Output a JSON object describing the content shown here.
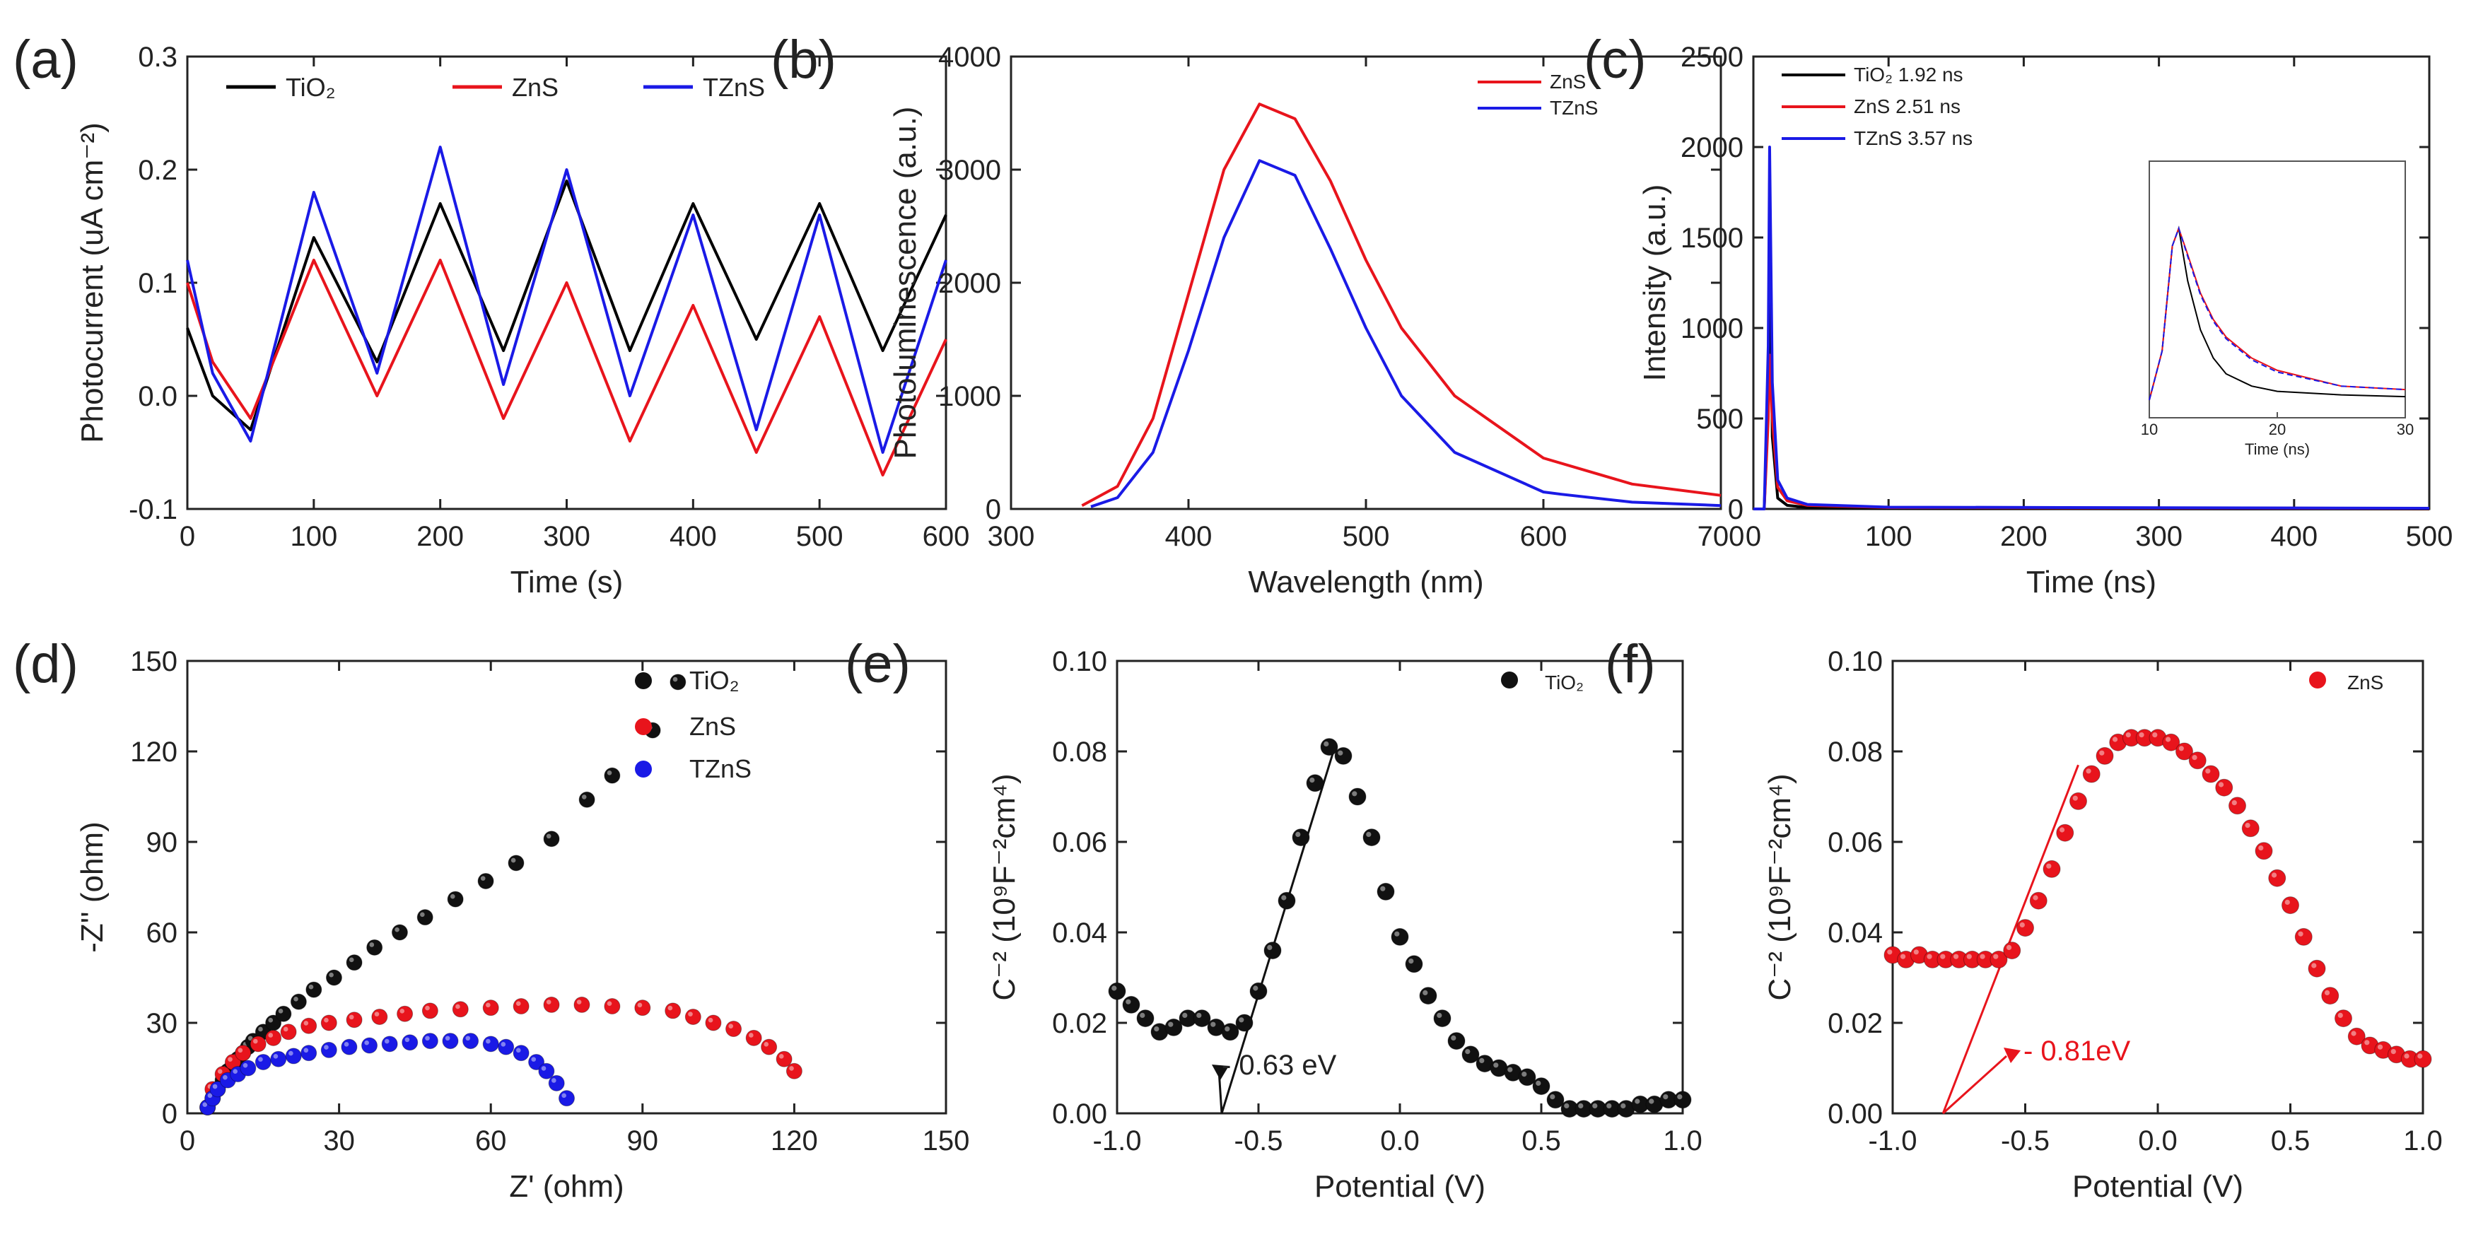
{
  "chart_data": [
    {
      "id": "a",
      "panel_label": "(a)",
      "type": "line",
      "xlabel": "Time (s)",
      "ylabel": "Photocurrent (uA cm⁻²)",
      "xlim": [
        0,
        600
      ],
      "ylim": [
        -0.1,
        0.3
      ],
      "xticks": [
        0,
        100,
        200,
        300,
        400,
        500,
        600
      ],
      "yticks": [
        -0.1,
        0.0,
        0.1,
        0.2,
        0.3
      ],
      "xtick_labels": [
        "0",
        "100",
        "200",
        "300",
        "400",
        "500",
        "600"
      ],
      "ytick_labels": [
        "-0.1",
        "0.0",
        "0.1",
        "0.2",
        "0.3"
      ],
      "legend_position": "top",
      "series": [
        {
          "name": "TiO₂",
          "color": "#000000",
          "x": [
            0,
            20,
            50,
            100,
            150,
            200,
            250,
            300,
            350,
            400,
            450,
            500,
            550,
            600
          ],
          "y": [
            0.06,
            0.0,
            -0.03,
            0.14,
            0.03,
            0.17,
            0.04,
            0.19,
            0.04,
            0.17,
            0.05,
            0.17,
            0.04,
            0.16
          ]
        },
        {
          "name": "ZnS",
          "color": "#e8141c",
          "x": [
            0,
            20,
            50,
            100,
            150,
            200,
            250,
            300,
            350,
            400,
            450,
            500,
            550,
            600
          ],
          "y": [
            0.1,
            0.03,
            -0.02,
            0.12,
            0.0,
            0.12,
            -0.02,
            0.1,
            -0.04,
            0.08,
            -0.05,
            0.07,
            -0.07,
            0.05
          ]
        },
        {
          "name": "TZnS",
          "color": "#1a1ae6",
          "x": [
            0,
            20,
            50,
            100,
            150,
            200,
            250,
            300,
            350,
            400,
            450,
            500,
            550,
            600
          ],
          "y": [
            0.12,
            0.02,
            -0.04,
            0.18,
            0.02,
            0.22,
            0.01,
            0.2,
            0.0,
            0.16,
            -0.03,
            0.16,
            -0.05,
            0.12
          ]
        }
      ]
    },
    {
      "id": "b",
      "panel_label": "(b)",
      "type": "line",
      "xlabel": "Wavelength (nm)",
      "ylabel": "Photoluminescence (a.u.)",
      "xlim": [
        300,
        700
      ],
      "ylim": [
        0,
        4000
      ],
      "xticks": [
        300,
        400,
        500,
        600,
        700
      ],
      "yticks": [
        0,
        1000,
        2000,
        3000,
        4000
      ],
      "xtick_labels": [
        "300",
        "400",
        "500",
        "600",
        "700"
      ],
      "ytick_labels": [
        "0",
        "1000",
        "2000",
        "3000",
        "4000"
      ],
      "legend_position": "top-right",
      "series": [
        {
          "name": "ZnS",
          "color": "#e8141c",
          "x": [
            340,
            360,
            380,
            400,
            420,
            440,
            460,
            480,
            500,
            520,
            550,
            600,
            650,
            700
          ],
          "y": [
            30,
            200,
            800,
            1900,
            3000,
            3580,
            3450,
            2900,
            2200,
            1600,
            1000,
            450,
            220,
            120
          ]
        },
        {
          "name": "TZnS",
          "color": "#1a1ae6",
          "x": [
            345,
            360,
            380,
            400,
            420,
            440,
            460,
            480,
            500,
            520,
            550,
            600,
            610,
            650,
            700
          ],
          "y": [
            20,
            100,
            500,
            1400,
            2400,
            3080,
            2950,
            2300,
            1600,
            1000,
            500,
            150,
            130,
            60,
            30
          ]
        }
      ]
    },
    {
      "id": "c",
      "panel_label": "(c)",
      "type": "line",
      "xlabel": "Time (ns)",
      "ylabel": "Intensity (a.u.)",
      "xlim": [
        0,
        500
      ],
      "ylim": [
        0,
        2500
      ],
      "xticks": [
        0,
        100,
        200,
        300,
        400,
        500
      ],
      "yticks": [
        0,
        500,
        1000,
        1500,
        2000,
        2500
      ],
      "xtick_labels": [
        "0",
        "100",
        "200",
        "300",
        "400",
        "500"
      ],
      "ytick_labels": [
        "0",
        "500",
        "1000",
        "1500",
        "2000",
        "2500"
      ],
      "legend_position": "top-left",
      "series": [
        {
          "name": "TiO₂ 1.92 ns",
          "color": "#000000",
          "x": [
            0,
            8,
            11,
            12,
            14,
            18,
            25,
            40,
            100,
            500
          ],
          "y": [
            0,
            0,
            600,
            1800,
            400,
            60,
            20,
            8,
            2,
            0
          ]
        },
        {
          "name": "ZnS 2.51 ns",
          "color": "#e8141c",
          "x": [
            0,
            8,
            11,
            12,
            14,
            18,
            25,
            40,
            100,
            500
          ],
          "y": [
            0,
            0,
            500,
            850,
            500,
            120,
            45,
            20,
            8,
            3
          ]
        },
        {
          "name": "TZnS 3.57 ns",
          "color": "#1a1ae6",
          "x": [
            0,
            8,
            11,
            12,
            14,
            18,
            25,
            40,
            100,
            500
          ],
          "y": [
            0,
            0,
            900,
            2000,
            700,
            160,
            60,
            25,
            10,
            4
          ]
        }
      ],
      "inset": {
        "xlabel": "Time (ns)",
        "xlim": [
          10,
          30
        ],
        "xticks": [
          10,
          20,
          30
        ],
        "xtick_labels": [
          "10",
          "20",
          "30"
        ],
        "series": [
          {
            "name": "TiO₂",
            "color": "#000000",
            "x": [
              10,
              11,
              11.8,
              12.3,
              13,
              14,
              15,
              16,
              18,
              20,
              25,
              30
            ],
            "y": [
              0.02,
              0.3,
              0.9,
              1.0,
              0.7,
              0.42,
              0.26,
              0.17,
              0.1,
              0.07,
              0.05,
              0.04
            ]
          },
          {
            "name": "ZnS",
            "color": "#e8141c",
            "x": [
              10,
              11,
              11.8,
              12.3,
              13,
              14,
              15,
              16,
              18,
              20,
              25,
              30
            ],
            "y": [
              0.02,
              0.3,
              0.9,
              1.0,
              0.85,
              0.63,
              0.48,
              0.38,
              0.26,
              0.19,
              0.1,
              0.08
            ]
          },
          {
            "name": "TZnS",
            "color": "#1a1ae6",
            "x": [
              10,
              11,
              11.8,
              12.3,
              13,
              14,
              15,
              16,
              18,
              20,
              25,
              30
            ],
            "y": [
              0.02,
              0.3,
              0.9,
              1.0,
              0.84,
              0.62,
              0.47,
              0.37,
              0.25,
              0.18,
              0.1,
              0.08
            ]
          }
        ]
      }
    },
    {
      "id": "d",
      "panel_label": "(d)",
      "type": "scatter",
      "xlabel": "Z' (ohm)",
      "ylabel": "-Z'' (ohm)",
      "xlim": [
        0,
        150
      ],
      "ylim": [
        0,
        150
      ],
      "xticks": [
        0,
        30,
        60,
        90,
        120,
        150
      ],
      "yticks": [
        0,
        30,
        60,
        90,
        120,
        150
      ],
      "xtick_labels": [
        "0",
        "30",
        "60",
        "90",
        "120",
        "150"
      ],
      "ytick_labels": [
        "0",
        "30",
        "60",
        "90",
        "120",
        "150"
      ],
      "legend_position": "top-right",
      "series": [
        {
          "name": "TiO₂",
          "color": "#111111",
          "x": [
            4,
            5,
            6,
            7,
            8,
            9,
            10,
            11,
            12,
            13,
            15,
            17,
            19,
            22,
            25,
            29,
            33,
            37,
            42,
            47,
            53,
            59,
            65,
            72,
            79,
            84,
            92,
            97
          ],
          "y": [
            2,
            5,
            8,
            11,
            14,
            16,
            18,
            20,
            22,
            24,
            27,
            30,
            33,
            37,
            41,
            45,
            50,
            55,
            60,
            65,
            71,
            77,
            83,
            91,
            104,
            112,
            127,
            143
          ]
        },
        {
          "name": "ZnS",
          "color": "#e8141c",
          "x": [
            4,
            5,
            7,
            9,
            11,
            14,
            17,
            20,
            24,
            28,
            33,
            38,
            43,
            48,
            54,
            60,
            66,
            72,
            78,
            84,
            90,
            96,
            100,
            104,
            108,
            112,
            115,
            118,
            120
          ],
          "y": [
            2,
            8,
            13,
            17,
            20,
            23,
            25,
            27,
            29,
            30,
            31,
            32,
            33,
            34,
            34.5,
            35,
            35.5,
            36,
            36,
            35.5,
            35,
            34,
            32,
            30,
            28,
            25,
            22,
            18,
            14
          ]
        },
        {
          "name": "TZnS",
          "color": "#1a1ae6",
          "x": [
            4,
            5,
            6,
            8,
            10,
            12,
            15,
            18,
            21,
            24,
            28,
            32,
            36,
            40,
            44,
            48,
            52,
            56,
            60,
            63,
            66,
            69,
            71,
            73,
            75
          ],
          "y": [
            2,
            5,
            8,
            11,
            13,
            15,
            17,
            18,
            19,
            20,
            21,
            22,
            22.5,
            23,
            23.5,
            24,
            24,
            24,
            23,
            22,
            20,
            17,
            14,
            10,
            5
          ]
        }
      ]
    },
    {
      "id": "e",
      "panel_label": "(e)",
      "type": "scatter",
      "xlabel": "Potential (V)",
      "ylabel": "C⁻² (10⁹F⁻²cm⁴)",
      "xlim": [
        -1.0,
        1.0
      ],
      "ylim": [
        0.0,
        0.1
      ],
      "xticks": [
        -1.0,
        -0.5,
        0.0,
        0.5,
        1.0
      ],
      "yticks": [
        0.0,
        0.02,
        0.04,
        0.06,
        0.08,
        0.1
      ],
      "xtick_labels": [
        "-1.0",
        "-0.5",
        "0.0",
        "0.5",
        "1.0"
      ],
      "ytick_labels": [
        "0.00",
        "0.02",
        "0.04",
        "0.06",
        "0.08",
        "0.10"
      ],
      "legend_position": "top-right",
      "annotation": "- 0.63 eV",
      "tangent_line": {
        "x": [
          -0.63,
          -0.23
        ],
        "y": [
          0.0,
          0.081
        ]
      },
      "series": [
        {
          "name": "TiO₂",
          "color": "#111111",
          "x": [
            -1.0,
            -0.95,
            -0.9,
            -0.85,
            -0.8,
            -0.75,
            -0.7,
            -0.65,
            -0.6,
            -0.55,
            -0.5,
            -0.45,
            -0.4,
            -0.35,
            -0.3,
            -0.25,
            -0.2,
            -0.15,
            -0.1,
            -0.05,
            0.0,
            0.05,
            0.1,
            0.15,
            0.2,
            0.25,
            0.3,
            0.35,
            0.4,
            0.45,
            0.5,
            0.55,
            0.6,
            0.65,
            0.7,
            0.75,
            0.8,
            0.85,
            0.9,
            0.95,
            1.0
          ],
          "y": [
            0.027,
            0.024,
            0.021,
            0.018,
            0.019,
            0.021,
            0.021,
            0.019,
            0.018,
            0.02,
            0.027,
            0.036,
            0.047,
            0.061,
            0.073,
            0.081,
            0.079,
            0.07,
            0.061,
            0.049,
            0.039,
            0.033,
            0.026,
            0.021,
            0.016,
            0.013,
            0.011,
            0.01,
            0.009,
            0.008,
            0.006,
            0.003,
            0.001,
            0.001,
            0.001,
            0.001,
            0.001,
            0.002,
            0.002,
            0.003,
            0.003
          ]
        }
      ]
    },
    {
      "id": "f",
      "panel_label": "(f)",
      "type": "scatter",
      "xlabel": "Potential (V)",
      "ylabel": "C⁻² (10⁹F⁻²cm⁴)",
      "xlim": [
        -1.0,
        1.0
      ],
      "ylim": [
        0.0,
        0.1
      ],
      "xticks": [
        -1.0,
        -0.5,
        0.0,
        0.5,
        1.0
      ],
      "yticks": [
        0.0,
        0.02,
        0.04,
        0.06,
        0.08,
        0.1
      ],
      "xtick_labels": [
        "-1.0",
        "-0.5",
        "0.0",
        "0.5",
        "1.0"
      ],
      "ytick_labels": [
        "0.00",
        "0.02",
        "0.04",
        "0.06",
        "0.08",
        "0.10"
      ],
      "legend_position": "top-right",
      "annotation": "- 0.81eV",
      "tangent_line": {
        "x": [
          -0.81,
          -0.3
        ],
        "y": [
          0.0,
          0.077
        ]
      },
      "series": [
        {
          "name": "ZnS",
          "color": "#e8141c",
          "x": [
            -1.0,
            -0.95,
            -0.9,
            -0.85,
            -0.8,
            -0.75,
            -0.7,
            -0.65,
            -0.6,
            -0.55,
            -0.5,
            -0.45,
            -0.4,
            -0.35,
            -0.3,
            -0.25,
            -0.2,
            -0.15,
            -0.1,
            -0.05,
            0.0,
            0.05,
            0.1,
            0.15,
            0.2,
            0.25,
            0.3,
            0.35,
            0.4,
            0.45,
            0.5,
            0.55,
            0.6,
            0.65,
            0.7,
            0.75,
            0.8,
            0.85,
            0.9,
            0.95,
            1.0
          ],
          "y": [
            0.035,
            0.034,
            0.035,
            0.034,
            0.034,
            0.034,
            0.034,
            0.034,
            0.034,
            0.036,
            0.041,
            0.047,
            0.054,
            0.062,
            0.069,
            0.075,
            0.079,
            0.082,
            0.083,
            0.083,
            0.083,
            0.082,
            0.08,
            0.078,
            0.075,
            0.072,
            0.068,
            0.063,
            0.058,
            0.052,
            0.046,
            0.039,
            0.032,
            0.026,
            0.021,
            0.017,
            0.015,
            0.014,
            0.013,
            0.012,
            0.012
          ]
        }
      ]
    }
  ]
}
